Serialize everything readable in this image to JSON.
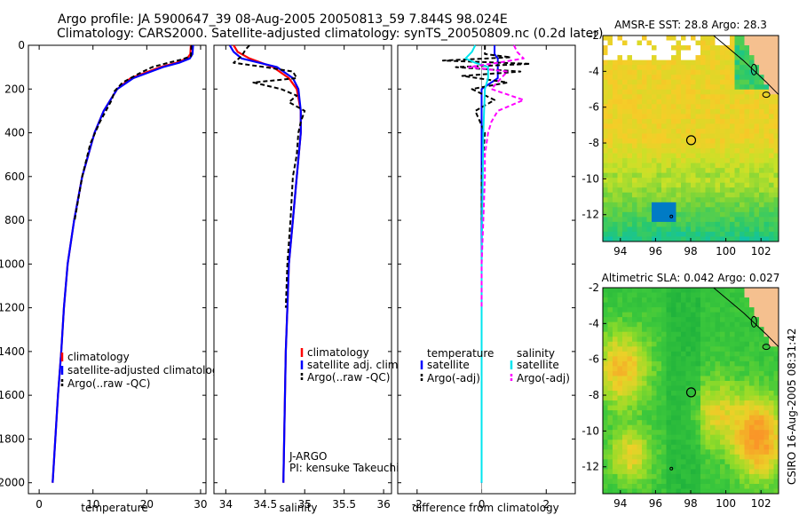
{
  "header": {
    "line1": "Argo profile: JA 5900647_39 08-Aug-2005 20050813_59 7.844S 98.024E",
    "line2": "Climatology: CARS2000. Satellite-adjusted climatology: synTS_20050809.nc (0.2d later)"
  },
  "colors": {
    "climatology": "#ff0000",
    "satellite": "#0000ff",
    "argo": "#000000",
    "satellite_diff_s": "#00e5ee",
    "argo_adj_s": "#ff00ff",
    "land": "#f5c08f"
  },
  "chart_data": [
    {
      "type": "line",
      "id": "temperature",
      "xlabel": "temperature",
      "ylabel": "",
      "xlim": [
        -2,
        31
      ],
      "ylim": [
        2050,
        0
      ],
      "xticks": [
        0,
        10,
        20,
        30
      ],
      "yticks": [
        0,
        200,
        400,
        600,
        800,
        1000,
        1200,
        1400,
        1600,
        1800,
        2000
      ],
      "legend": [
        "climatology",
        "satellite-adjusted climatology",
        "Argo(..raw -QC)"
      ],
      "series": [
        {
          "name": "climatology",
          "depth": [
            0,
            40,
            60,
            80,
            100,
            150,
            200,
            300,
            400,
            600,
            800,
            1000,
            1200,
            1400,
            1600,
            1800,
            2000
          ],
          "values": [
            28.2,
            28.1,
            27.5,
            25.5,
            22.5,
            17.0,
            14.5,
            12.0,
            10.3,
            8.0,
            6.5,
            5.3,
            4.6,
            4.1,
            3.5,
            3.0,
            2.5
          ]
        },
        {
          "name": "satellite-adjusted climatology",
          "depth": [
            0,
            40,
            60,
            80,
            100,
            150,
            200,
            300,
            400,
            600,
            800,
            1000,
            1200,
            1400,
            1600,
            1800,
            2000
          ],
          "values": [
            28.6,
            28.5,
            28.0,
            26.0,
            23.0,
            17.5,
            14.5,
            12.0,
            10.3,
            8.0,
            6.5,
            5.3,
            4.6,
            4.1,
            3.5,
            3.0,
            2.5
          ]
        },
        {
          "name": "Argo(..raw -QC)",
          "depth": [
            0,
            50,
            65,
            80,
            100,
            130,
            170,
            210,
            250,
            350,
            450,
            600,
            800
          ],
          "values": [
            28.3,
            28.2,
            26.5,
            24.0,
            21.0,
            18.5,
            15.5,
            14.0,
            13.5,
            11.3,
            9.5,
            8.0,
            6.6
          ]
        }
      ]
    },
    {
      "type": "line",
      "id": "salinity",
      "xlabel": "salinity",
      "ylabel": "",
      "xlim": [
        33.85,
        36.1
      ],
      "ylim": [
        2050,
        0
      ],
      "xticks": [
        34,
        34.5,
        35,
        35.5,
        36
      ],
      "legend": [
        "climatology",
        "satellite adj. clim.",
        "Argo(..raw -QC)"
      ],
      "annotation": [
        "J-ARGO",
        "PI: kensuke Takeuchi"
      ],
      "series": [
        {
          "name": "climatology",
          "depth": [
            0,
            30,
            60,
            100,
            150,
            200,
            300,
            400,
            600,
            800,
            1000,
            1200,
            1400,
            1600,
            1800,
            2000
          ],
          "values": [
            34.1,
            34.15,
            34.3,
            34.6,
            34.8,
            34.9,
            34.95,
            34.95,
            34.9,
            34.85,
            34.8,
            34.78,
            34.76,
            34.75,
            34.74,
            34.73
          ]
        },
        {
          "name": "satellite adj. clim.",
          "depth": [
            0,
            30,
            60,
            100,
            150,
            200,
            300,
            400,
            600,
            800,
            1000,
            1200,
            1400,
            1600,
            1800,
            2000
          ],
          "values": [
            34.05,
            34.1,
            34.2,
            34.65,
            34.85,
            34.92,
            34.95,
            34.95,
            34.9,
            34.85,
            34.8,
            34.78,
            34.76,
            34.75,
            34.74,
            34.73
          ]
        },
        {
          "name": "Argo(..raw -QC)",
          "depth": [
            0,
            20,
            50,
            80,
            100,
            120,
            150,
            170,
            200,
            230,
            260,
            300,
            350,
            400,
            500,
            600,
            800,
            1000,
            1200
          ],
          "values": [
            34.3,
            34.25,
            34.2,
            34.1,
            34.5,
            34.85,
            34.9,
            34.35,
            34.7,
            34.9,
            34.8,
            35.0,
            34.95,
            34.92,
            34.9,
            34.85,
            34.82,
            34.78,
            34.76
          ]
        }
      ]
    },
    {
      "type": "line",
      "id": "difference",
      "xlabel": "difference from climatology",
      "ylabel": "",
      "xlim": [
        -2.6,
        2.9
      ],
      "ylim": [
        2050,
        0
      ],
      "xticks": [
        -2,
        0,
        2
      ],
      "legend_left_title": "temperature",
      "legend_right_title": "salinity",
      "legend": [
        "satellite",
        "Argo(-adj)",
        "satellite",
        "Argo(-adj)"
      ],
      "series": [
        {
          "name": "temperature satellite",
          "depth": [
            0,
            40,
            60,
            80,
            100,
            150,
            200,
            400,
            1000,
            2000
          ],
          "values": [
            0.4,
            0.4,
            0.5,
            0.5,
            0.5,
            0.5,
            0.0,
            0.0,
            0.0,
            0.0
          ]
        },
        {
          "name": "temperature Argo(-adj)",
          "depth": [
            0,
            40,
            55,
            70,
            85,
            100,
            120,
            140,
            170,
            200,
            250,
            300,
            400,
            600,
            800
          ],
          "values": [
            0.1,
            0.1,
            0.9,
            -1.2,
            1.5,
            -0.8,
            1.2,
            -0.6,
            0.8,
            -0.3,
            0.4,
            -0.2,
            0.1,
            0.0,
            0.0
          ]
        },
        {
          "name": "salinity satellite",
          "depth": [
            0,
            30,
            60,
            80,
            100,
            150,
            200,
            400,
            1000,
            2000
          ],
          "values": [
            -0.2,
            -0.3,
            -0.5,
            -0.2,
            0.2,
            0.2,
            0.1,
            0.05,
            0.0,
            0.0
          ]
        },
        {
          "name": "salinity Argo(-adj)",
          "depth": [
            0,
            30,
            60,
            80,
            100,
            120,
            150,
            200,
            250,
            300,
            350,
            400,
            500,
            600,
            800,
            1000,
            1200
          ],
          "values": [
            1.0,
            1.1,
            1.3,
            0.5,
            -0.4,
            0.8,
            0.6,
            0.3,
            1.3,
            0.5,
            0.3,
            0.2,
            0.1,
            0.1,
            0.05,
            0.0,
            0.0
          ]
        }
      ]
    },
    {
      "type": "heatmap",
      "id": "sst",
      "title": "AMSR-E SST: 28.8 Argo: 28.3",
      "xticks": [
        94,
        96,
        98,
        100,
        102
      ],
      "yticks": [
        -2,
        -4,
        -6,
        -8,
        -10,
        -12
      ],
      "xlim": [
        93,
        103
      ],
      "ylim": [
        -13.5,
        -2
      ],
      "marker": {
        "lon": 98.024,
        "lat": -7.844
      }
    },
    {
      "type": "heatmap",
      "id": "sla",
      "title": "Altimetric SLA: 0.042 Argo: 0.027",
      "xticks": [
        94,
        96,
        98,
        100,
        102
      ],
      "yticks": [
        -2,
        -4,
        -6,
        -8,
        -10,
        -12
      ],
      "xlim": [
        93,
        103
      ],
      "ylim": [
        -13.5,
        -2
      ],
      "marker": {
        "lon": 98.024,
        "lat": -7.844
      }
    }
  ],
  "footer": {
    "stamp": "CSIRO 16-Aug-2005 08:31:42"
  }
}
